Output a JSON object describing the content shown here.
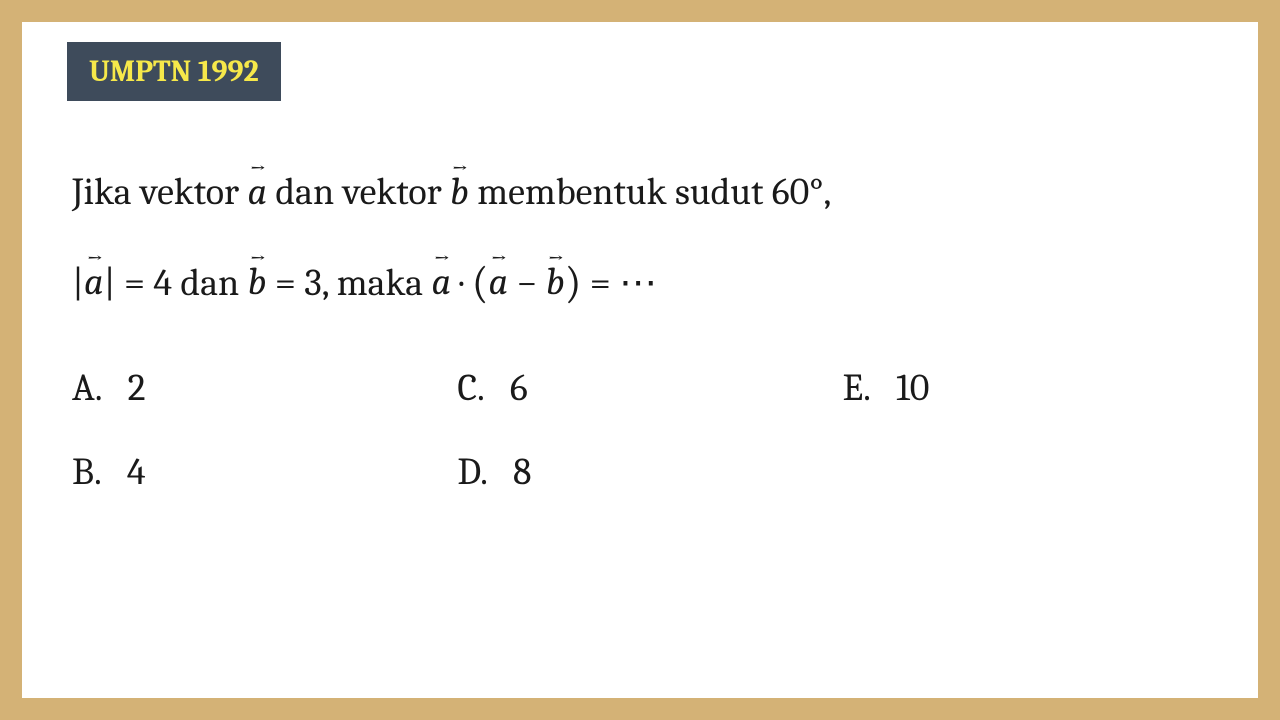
{
  "header": {
    "badge": "UMPTN 1992"
  },
  "question": {
    "part1": "Jika vektor ",
    "vec1": "a",
    "part2": " dan vektor ",
    "vec2": "b",
    "part3": " membentuk sudut 60°,",
    "part4": "|",
    "vec3": "a",
    "part5": "| = 4 dan ",
    "vec4": "b",
    "part6": " = 3, maka ",
    "vec5": "a",
    "part7": " · ",
    "lparen": "(",
    "vec6": "a",
    "part8": " − ",
    "vec7": "b",
    "rparen": ")",
    "part9": " = ⋯"
  },
  "options": {
    "a_letter": "A.",
    "a_value": "2",
    "b_letter": "B.",
    "b_value": "4",
    "c_letter": "C.",
    "c_value": "6",
    "d_letter": "D.",
    "d_value": "8",
    "e_letter": "E.",
    "e_value": "10"
  },
  "colors": {
    "outer_bg": "#d4b276",
    "inner_bg": "#ffffff",
    "badge_bg": "#3e4b5b",
    "badge_text": "#f6e84a",
    "text": "#1a1a1a"
  }
}
